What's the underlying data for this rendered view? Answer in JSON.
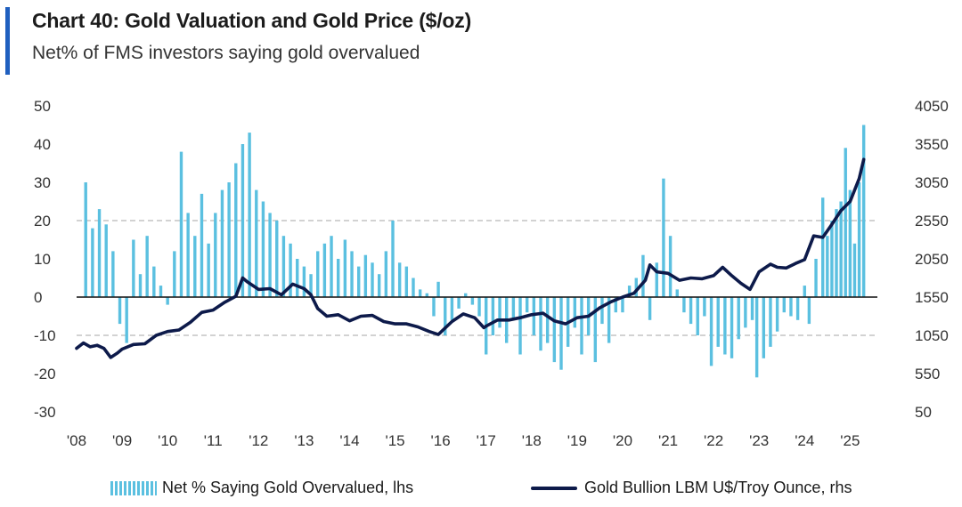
{
  "header": {
    "title": "Chart 40: Gold Valuation and Gold Price ($/oz)",
    "subtitle": "Net% of FMS investors saying gold overvalued"
  },
  "colors": {
    "bars": "#5bc0e0",
    "line": "#0d1a4a",
    "accent": "#1f5fbf",
    "grid_dashed": "#b8b8b8",
    "zero_line": "#111111"
  },
  "chart_data": {
    "type": "bar",
    "title": "Chart 40: Gold Valuation and Gold Price ($/oz)",
    "subtitle": "Net% of FMS investors saying gold overvalued",
    "x_tick_labels": [
      "'08",
      "'09",
      "'10",
      "'11",
      "'12",
      "'13",
      "'14",
      "'15",
      "'16",
      "'17",
      "'18",
      "'19",
      "'20",
      "'21",
      "'22",
      "'23",
      "'24",
      "'25"
    ],
    "left_axis": {
      "ticks": [
        "50",
        "40",
        "30",
        "20",
        "10",
        "0",
        "-10",
        "-20",
        "-30"
      ],
      "ylim": [
        -30,
        50
      ]
    },
    "right_axis": {
      "ticks": [
        "4050",
        "3550",
        "3050",
        "2550",
        "2050",
        "1550",
        "1050",
        "550",
        "50"
      ],
      "ylim": [
        50,
        4050
      ]
    },
    "grid": "dashed lines at 20, 0 and -10 on left axis; reference line at 1550 on right axis",
    "legend_placement": "bottom",
    "series": [
      {
        "name": "Net % Saying Gold Overvalued, lhs",
        "type": "bar",
        "axis": "left",
        "points": [
          [
            2008.2,
            30
          ],
          [
            2008.35,
            18
          ],
          [
            2008.5,
            23
          ],
          [
            2008.65,
            19
          ],
          [
            2008.8,
            12
          ],
          [
            2008.95,
            -7
          ],
          [
            2009.1,
            -12
          ],
          [
            2009.25,
            15
          ],
          [
            2009.4,
            6
          ],
          [
            2009.55,
            16
          ],
          [
            2009.7,
            8
          ],
          [
            2009.85,
            3
          ],
          [
            2010.0,
            -2
          ],
          [
            2010.15,
            12
          ],
          [
            2010.3,
            38
          ],
          [
            2010.45,
            22
          ],
          [
            2010.6,
            16
          ],
          [
            2010.75,
            27
          ],
          [
            2010.9,
            14
          ],
          [
            2011.05,
            22
          ],
          [
            2011.2,
            28
          ],
          [
            2011.35,
            30
          ],
          [
            2011.5,
            35
          ],
          [
            2011.65,
            40
          ],
          [
            2011.8,
            43
          ],
          [
            2011.95,
            28
          ],
          [
            2012.1,
            25
          ],
          [
            2012.25,
            22
          ],
          [
            2012.4,
            20
          ],
          [
            2012.55,
            16
          ],
          [
            2012.7,
            14
          ],
          [
            2012.85,
            10
          ],
          [
            2013.0,
            8
          ],
          [
            2013.15,
            6
          ],
          [
            2013.3,
            12
          ],
          [
            2013.45,
            14
          ],
          [
            2013.6,
            16
          ],
          [
            2013.75,
            10
          ],
          [
            2013.9,
            15
          ],
          [
            2014.05,
            12
          ],
          [
            2014.2,
            8
          ],
          [
            2014.35,
            11
          ],
          [
            2014.5,
            9
          ],
          [
            2014.65,
            6
          ],
          [
            2014.8,
            12
          ],
          [
            2014.95,
            20
          ],
          [
            2015.1,
            9
          ],
          [
            2015.25,
            8
          ],
          [
            2015.4,
            5
          ],
          [
            2015.55,
            2
          ],
          [
            2015.7,
            1
          ],
          [
            2015.85,
            -5
          ],
          [
            2015.95,
            4
          ],
          [
            2016.1,
            -10
          ],
          [
            2016.25,
            -6
          ],
          [
            2016.4,
            -3
          ],
          [
            2016.55,
            1
          ],
          [
            2016.7,
            -2
          ],
          [
            2016.85,
            -5
          ],
          [
            2017.0,
            -15
          ],
          [
            2017.15,
            -10
          ],
          [
            2017.3,
            -8
          ],
          [
            2017.45,
            -12
          ],
          [
            2017.6,
            -6
          ],
          [
            2017.75,
            -15
          ],
          [
            2017.9,
            -4
          ],
          [
            2018.05,
            -10
          ],
          [
            2018.2,
            -14
          ],
          [
            2018.35,
            -12
          ],
          [
            2018.5,
            -17
          ],
          [
            2018.65,
            -19
          ],
          [
            2018.8,
            -13
          ],
          [
            2018.95,
            -8
          ],
          [
            2019.1,
            -15
          ],
          [
            2019.25,
            -10
          ],
          [
            2019.4,
            -17
          ],
          [
            2019.55,
            -7
          ],
          [
            2019.7,
            -12
          ],
          [
            2019.85,
            -4
          ],
          [
            2020.0,
            -4
          ],
          [
            2020.15,
            3
          ],
          [
            2020.3,
            5
          ],
          [
            2020.45,
            11
          ],
          [
            2020.6,
            -6
          ],
          [
            2020.75,
            9
          ],
          [
            2020.9,
            31
          ],
          [
            2021.05,
            16
          ],
          [
            2021.2,
            2
          ],
          [
            2021.35,
            -4
          ],
          [
            2021.5,
            -7
          ],
          [
            2021.65,
            -10
          ],
          [
            2021.8,
            -5
          ],
          [
            2021.95,
            -18
          ],
          [
            2022.1,
            -13
          ],
          [
            2022.25,
            -15
          ],
          [
            2022.4,
            -16
          ],
          [
            2022.55,
            -11
          ],
          [
            2022.7,
            -8
          ],
          [
            2022.85,
            -6
          ],
          [
            2022.95,
            -21
          ],
          [
            2023.1,
            -16
          ],
          [
            2023.25,
            -13
          ],
          [
            2023.4,
            -9
          ],
          [
            2023.55,
            -4
          ],
          [
            2023.7,
            -5
          ],
          [
            2023.85,
            -6
          ],
          [
            2024.0,
            3
          ],
          [
            2024.1,
            -7
          ],
          [
            2024.25,
            10
          ],
          [
            2024.4,
            26
          ],
          [
            2024.5,
            16
          ],
          [
            2024.6,
            20
          ],
          [
            2024.7,
            23
          ],
          [
            2024.8,
            25
          ],
          [
            2024.9,
            39
          ],
          [
            2025.0,
            28
          ],
          [
            2025.1,
            14
          ],
          [
            2025.2,
            30
          ],
          [
            2025.3,
            45
          ]
        ]
      },
      {
        "name": "Gold Bullion LBM U$/Troy Ounce, rhs",
        "type": "line",
        "axis": "right",
        "points": [
          [
            2008.0,
            880
          ],
          [
            2008.15,
            950
          ],
          [
            2008.3,
            900
          ],
          [
            2008.45,
            920
          ],
          [
            2008.6,
            880
          ],
          [
            2008.75,
            760
          ],
          [
            2008.9,
            820
          ],
          [
            2009.0,
            870
          ],
          [
            2009.25,
            930
          ],
          [
            2009.5,
            940
          ],
          [
            2009.75,
            1050
          ],
          [
            2010.0,
            1100
          ],
          [
            2010.25,
            1120
          ],
          [
            2010.5,
            1220
          ],
          [
            2010.75,
            1350
          ],
          [
            2011.0,
            1380
          ],
          [
            2011.25,
            1480
          ],
          [
            2011.5,
            1560
          ],
          [
            2011.65,
            1800
          ],
          [
            2011.75,
            1750
          ],
          [
            2012.0,
            1650
          ],
          [
            2012.25,
            1660
          ],
          [
            2012.5,
            1580
          ],
          [
            2012.75,
            1720
          ],
          [
            2013.0,
            1660
          ],
          [
            2013.15,
            1580
          ],
          [
            2013.3,
            1400
          ],
          [
            2013.5,
            1300
          ],
          [
            2013.75,
            1320
          ],
          [
            2014.0,
            1240
          ],
          [
            2014.25,
            1300
          ],
          [
            2014.5,
            1310
          ],
          [
            2014.75,
            1230
          ],
          [
            2015.0,
            1200
          ],
          [
            2015.25,
            1200
          ],
          [
            2015.5,
            1160
          ],
          [
            2015.75,
            1100
          ],
          [
            2015.95,
            1060
          ],
          [
            2016.25,
            1230
          ],
          [
            2016.5,
            1330
          ],
          [
            2016.75,
            1280
          ],
          [
            2016.95,
            1150
          ],
          [
            2017.0,
            1170
          ],
          [
            2017.25,
            1250
          ],
          [
            2017.5,
            1250
          ],
          [
            2017.75,
            1280
          ],
          [
            2018.0,
            1320
          ],
          [
            2018.25,
            1340
          ],
          [
            2018.5,
            1240
          ],
          [
            2018.75,
            1200
          ],
          [
            2019.0,
            1280
          ],
          [
            2019.25,
            1300
          ],
          [
            2019.5,
            1410
          ],
          [
            2019.75,
            1490
          ],
          [
            2020.0,
            1550
          ],
          [
            2020.25,
            1600
          ],
          [
            2020.5,
            1770
          ],
          [
            2020.6,
            1970
          ],
          [
            2020.75,
            1880
          ],
          [
            2021.0,
            1860
          ],
          [
            2021.25,
            1770
          ],
          [
            2021.5,
            1800
          ],
          [
            2021.75,
            1790
          ],
          [
            2022.0,
            1830
          ],
          [
            2022.2,
            1940
          ],
          [
            2022.4,
            1830
          ],
          [
            2022.6,
            1730
          ],
          [
            2022.8,
            1650
          ],
          [
            2023.0,
            1880
          ],
          [
            2023.25,
            1980
          ],
          [
            2023.4,
            1940
          ],
          [
            2023.6,
            1930
          ],
          [
            2023.8,
            1990
          ],
          [
            2024.0,
            2040
          ],
          [
            2024.2,
            2350
          ],
          [
            2024.4,
            2330
          ],
          [
            2024.6,
            2500
          ],
          [
            2024.8,
            2680
          ],
          [
            2025.0,
            2800
          ],
          [
            2025.2,
            3100
          ],
          [
            2025.3,
            3350
          ]
        ]
      }
    ]
  },
  "legend": {
    "bars_label": "Net % Saying Gold Overvalued, lhs",
    "line_label": "Gold Bullion LBM U$/Troy Ounce, rhs"
  }
}
